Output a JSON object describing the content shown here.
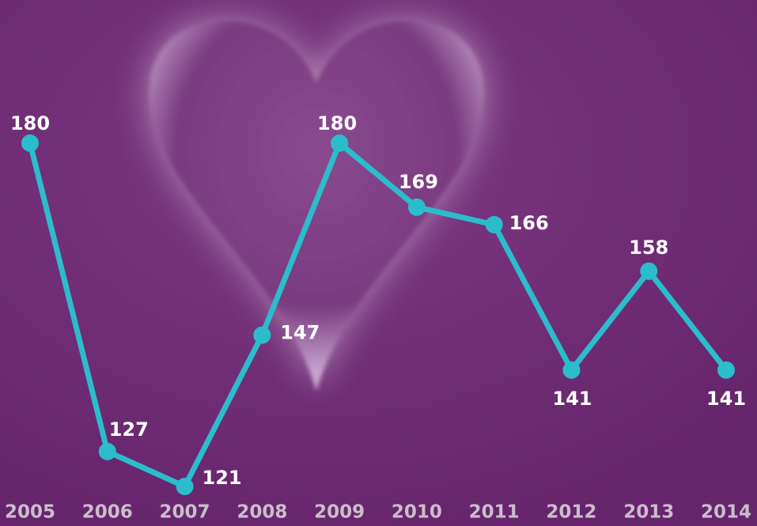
{
  "chart_data": {
    "type": "line",
    "categories": [
      "2005",
      "2006",
      "2007",
      "2008",
      "2009",
      "2010",
      "2011",
      "2012",
      "2013",
      "2014"
    ],
    "series": [
      {
        "color": "#2bbdcc",
        "values": [
          180,
          127,
          121,
          147,
          180,
          169,
          166,
          141,
          158,
          141
        ]
      }
    ]
  }
}
